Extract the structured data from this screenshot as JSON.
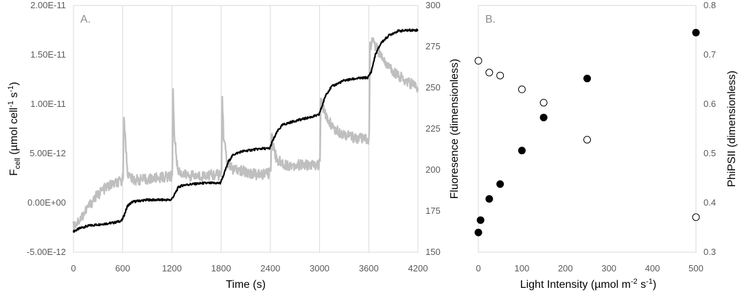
{
  "chart_data": [
    {
      "type": "line",
      "panel_label": "A.",
      "xlabel": "Time (s)",
      "ylabel": "F_cell (µmol cell⁻¹ s⁻¹)",
      "ylabel_parts": {
        "main": "F",
        "sub": "cell",
        "unit_a": " (µmol cell",
        "sup_a": "-1",
        "unit_b": " s",
        "sup_b": "-1",
        "unit_c": ")"
      },
      "y2label": "Fluoresence (dimensionless)",
      "xlim": [
        0,
        4200
      ],
      "x_ticks": [
        "0",
        "600",
        "1200",
        "1800",
        "2400",
        "3000",
        "3600",
        "4200"
      ],
      "ylim": [
        -5e-12,
        2e-11
      ],
      "y_ticks": [
        "-5.00E-12",
        "0.00E+00",
        "5.00E-12",
        "1.00E-11",
        "1.50E-11",
        "2.00E-11"
      ],
      "y2lim": [
        150,
        300
      ],
      "y2_ticks": [
        "150",
        "175",
        "200",
        "225",
        "250",
        "275",
        "300"
      ],
      "vertical_gridlines_at": [
        600,
        1200,
        1800,
        2400,
        3000,
        3600
      ],
      "series": [
        {
          "axis": "left",
          "color": "#000000",
          "points": [
            [
              0,
              -2.9e-12
            ],
            [
              100,
              -2.5e-12
            ],
            [
              200,
              -2.3e-12
            ],
            [
              300,
              -2.2e-12
            ],
            [
              400,
              -2.1e-12
            ],
            [
              500,
              -2e-12
            ],
            [
              590,
              -1.8e-12
            ],
            [
              620,
              -1.2e-12
            ],
            [
              660,
              -3e-13
            ],
            [
              720,
              1e-13
            ],
            [
              800,
              2e-13
            ],
            [
              900,
              3e-13
            ],
            [
              1000,
              3e-13
            ],
            [
              1100,
              3e-13
            ],
            [
              1190,
              3e-13
            ],
            [
              1230,
              8e-13
            ],
            [
              1280,
              1.6e-12
            ],
            [
              1340,
              1.8e-12
            ],
            [
              1450,
              1.9e-12
            ],
            [
              1600,
              2e-12
            ],
            [
              1700,
              2e-12
            ],
            [
              1790,
              2e-12
            ],
            [
              1830,
              2.8e-12
            ],
            [
              1890,
              4.2e-12
            ],
            [
              1950,
              4.9e-12
            ],
            [
              2050,
              5.2e-12
            ],
            [
              2200,
              5.4e-12
            ],
            [
              2300,
              5.5e-12
            ],
            [
              2390,
              5.5e-12
            ],
            [
              2430,
              6.3e-12
            ],
            [
              2490,
              7.3e-12
            ],
            [
              2550,
              7.9e-12
            ],
            [
              2700,
              8.3e-12
            ],
            [
              2850,
              8.6e-12
            ],
            [
              2990,
              8.9e-12
            ],
            [
              3030,
              9.8e-12
            ],
            [
              3080,
              1.1e-11
            ],
            [
              3150,
              1.18e-11
            ],
            [
              3300,
              1.24e-11
            ],
            [
              3450,
              1.26e-11
            ],
            [
              3590,
              1.27e-11
            ],
            [
              3630,
              1.33e-11
            ],
            [
              3680,
              1.5e-11
            ],
            [
              3750,
              1.62e-11
            ],
            [
              3850,
              1.7e-11
            ],
            [
              3950,
              1.74e-11
            ],
            [
              4100,
              1.75e-11
            ],
            [
              4200,
              1.75e-11
            ]
          ]
        },
        {
          "axis": "right",
          "color": "#bfbfbf",
          "points": [
            [
              0,
              166
            ],
            [
              80,
              170
            ],
            [
              160,
              176
            ],
            [
              260,
              183
            ],
            [
              360,
              188
            ],
            [
              460,
              191
            ],
            [
              590,
              193
            ],
            [
              605,
              196
            ],
            [
              615,
              235
            ],
            [
              630,
              220
            ],
            [
              660,
              198
            ],
            [
              720,
              194
            ],
            [
              850,
              194
            ],
            [
              1000,
              195
            ],
            [
              1150,
              196
            ],
            [
              1195,
              196
            ],
            [
              1205,
              198
            ],
            [
              1215,
              247
            ],
            [
              1230,
              222
            ],
            [
              1270,
              200
            ],
            [
              1350,
              197
            ],
            [
              1500,
              196
            ],
            [
              1650,
              197
            ],
            [
              1795,
              197
            ],
            [
              1805,
              199
            ],
            [
              1815,
              244
            ],
            [
              1830,
              222
            ],
            [
              1870,
              205
            ],
            [
              1950,
              200
            ],
            [
              2100,
              199
            ],
            [
              2250,
              197
            ],
            [
              2395,
              198
            ],
            [
              2405,
              201
            ],
            [
              2415,
              224
            ],
            [
              2430,
              216
            ],
            [
              2480,
              206
            ],
            [
              2600,
              203
            ],
            [
              2800,
              203
            ],
            [
              2995,
              203
            ],
            [
              3005,
              206
            ],
            [
              3015,
              246
            ],
            [
              3030,
              240
            ],
            [
              3080,
              232
            ],
            [
              3200,
              224
            ],
            [
              3400,
              220
            ],
            [
              3595,
              218
            ],
            [
              3605,
              220
            ],
            [
              3615,
              275
            ],
            [
              3650,
              278
            ],
            [
              3720,
              272
            ],
            [
              3850,
              262
            ],
            [
              4000,
              256
            ],
            [
              4200,
              250
            ]
          ]
        }
      ]
    },
    {
      "type": "scatter",
      "panel_label": "B.",
      "xlabel": "Light Intensity (µmol m⁻² s⁻¹)",
      "xlabel_parts": {
        "main": "Light Intensity (µmol m",
        "sup_a": "-2",
        "mid": " s",
        "sup_b": "-1",
        "end": ")"
      },
      "ylabel": "Fluoresence (dimensionless)",
      "y2label": "PhiPSII (dimensionless)",
      "xlim": [
        0,
        500
      ],
      "x_ticks": [
        "0",
        "100",
        "200",
        "300",
        "400",
        "500"
      ],
      "ylim": [
        150,
        300
      ],
      "y2lim": [
        0.3,
        0.8
      ],
      "y2_ticks": [
        "0.3",
        "0.4",
        "0.5",
        "0.6",
        "0.7",
        "0.8"
      ],
      "series": [
        {
          "marker": "filled",
          "axis": "right",
          "points": [
            [
              0,
              0.34
            ],
            [
              5,
              0.365
            ],
            [
              25,
              0.408
            ],
            [
              50,
              0.438
            ],
            [
              100,
              0.506
            ],
            [
              150,
              0.573
            ],
            [
              250,
              0.652
            ],
            [
              500,
              0.745
            ]
          ]
        },
        {
          "marker": "open",
          "axis": "right",
          "points": [
            [
              0,
              0.688
            ],
            [
              25,
              0.664
            ],
            [
              50,
              0.658
            ],
            [
              100,
              0.63
            ],
            [
              150,
              0.603
            ],
            [
              250,
              0.528
            ],
            [
              500,
              0.371
            ]
          ]
        }
      ]
    }
  ]
}
